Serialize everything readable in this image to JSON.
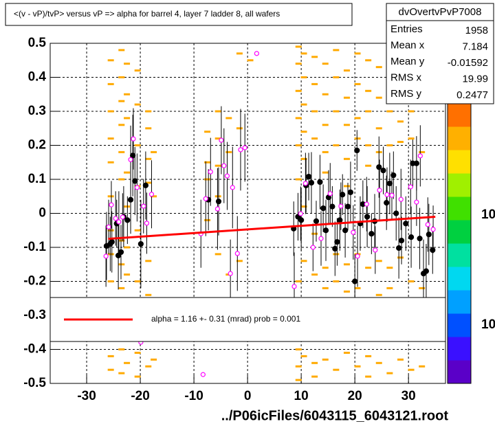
{
  "chart_data": {
    "type": "scatter",
    "title": "<(v - vP)/tvP> versus   vP => alpha for barrel 4, layer 7 ladder 8, all wafers",
    "x_label": "../P06icFiles/6043115_6043121.root",
    "xlim": [
      -36.8,
      36.9
    ],
    "ylim": [
      -0.5,
      0.5
    ],
    "xticks": [
      -30,
      -20,
      -10,
      0,
      10,
      20,
      30
    ],
    "yticks": [
      0.5,
      0.4,
      0.3,
      0.2,
      0.1,
      0,
      -0.1,
      -0.2,
      -0.3,
      -0.4,
      -0.5
    ],
    "grid": true,
    "cell_color": "#ffaa00",
    "cells": [
      {
        "x": -25.5,
        "y": [
          0.45,
          0.38,
          0.3,
          0.22,
          0.15,
          0.05,
          -0.05,
          -0.12,
          -0.2,
          -0.42,
          -0.46
        ]
      },
      {
        "x": -23.5,
        "y": [
          0.48,
          0.4,
          0.33,
          0.26,
          0.18,
          0.1,
          -0.08,
          -0.15,
          -0.22,
          -0.4,
          -0.47
        ]
      },
      {
        "x": -22.5,
        "y": [
          0.44,
          0.35,
          0.28,
          0.12,
          0.02,
          -0.1,
          -0.18,
          -0.44
        ]
      },
      {
        "x": -20.5,
        "y": [
          0.42,
          0.32,
          0.2,
          0.08,
          -0.05,
          -0.2,
          -0.41,
          -0.48
        ]
      },
      {
        "x": -18.5,
        "y": [
          0.3,
          0.25,
          0.16,
          0.09,
          -0.14,
          -0.24,
          -0.45
        ]
      },
      {
        "x": -17.5,
        "y": [
          0.18,
          0.05,
          -0.43
        ]
      },
      {
        "x": -7.5,
        "y": [
          0.24,
          0.15,
          0.1,
          -0.02
        ]
      },
      {
        "x": -5.5,
        "y": [
          0.3,
          0.22,
          0.14,
          0.05,
          -0.12
        ]
      },
      {
        "x": -3.5,
        "y": [
          0.28,
          0.18,
          -0.18
        ]
      },
      {
        "x": -1.5,
        "y": [
          0.47,
          0.25,
          -0.14
        ]
      },
      {
        "x": 0.5,
        "y": [
          0.45
        ]
      },
      {
        "x": 9.5,
        "y": [
          0.49,
          0.44,
          0.36,
          0.28,
          0.2,
          0.1,
          -0.2,
          -0.4,
          -0.45,
          -0.49
        ]
      },
      {
        "x": 10.5,
        "y": [
          0.47,
          0.4,
          0.32,
          0.24,
          0.16,
          0.02,
          -0.14,
          -0.42
        ]
      },
      {
        "x": 12.5,
        "y": [
          0.46,
          0.38,
          0.3,
          0.22,
          -0.06,
          -0.18,
          -0.44,
          -0.48
        ]
      },
      {
        "x": 14.5,
        "y": [
          0.44,
          0.35,
          0.26,
          0.18,
          0.12,
          -0.16,
          -0.22,
          -0.43
        ]
      },
      {
        "x": 16.5,
        "y": [
          0.48,
          0.4,
          0.3,
          0.2,
          -0.12,
          -0.2,
          -0.46
        ]
      },
      {
        "x": 18.5,
        "y": [
          0.42,
          0.34,
          0.26,
          0.16,
          0.08,
          -0.15,
          -0.23,
          -0.41
        ]
      },
      {
        "x": 20.5,
        "y": [
          0.47,
          0.38,
          0.28,
          0.22,
          -0.12,
          -0.22,
          -0.45
        ]
      },
      {
        "x": 22.5,
        "y": [
          0.45,
          0.36,
          0.3,
          0.2,
          0.14,
          -0.16,
          -0.42,
          -0.48
        ]
      },
      {
        "x": 24.5,
        "y": [
          0.43,
          0.34,
          0.25,
          0.18,
          -0.14,
          -0.24,
          -0.44
        ]
      },
      {
        "x": 26.5,
        "y": [
          0.48,
          0.38,
          0.3,
          0.2,
          -0.16,
          -0.22,
          -0.47
        ]
      },
      {
        "x": 28.5,
        "y": [
          0.44,
          0.36,
          0.27,
          0.21,
          -0.13,
          -0.43
        ]
      },
      {
        "x": 30.5,
        "y": [
          0.47,
          0.4,
          0.3,
          0.22,
          -0.2,
          -0.46
        ]
      },
      {
        "x": 32.5,
        "y": [
          0.42,
          0.34,
          0.18,
          -0.22,
          -0.45
        ]
      }
    ],
    "series": [
      {
        "marker": "filled",
        "color": "#000000",
        "x": [
          -26.3,
          -25.6,
          -25.3,
          -24.4,
          -24.1,
          -23.6,
          -23.1,
          -22.4,
          -21.8,
          -21.4,
          -21.0,
          -19.9,
          -19.0,
          -7.3,
          -5.4,
          8.6,
          9.4,
          10,
          10.9,
          11.4,
          11.9,
          12.8,
          13.5,
          14.1,
          14.6,
          15.1,
          15.8,
          16.3,
          16.7,
          17.2,
          17.7,
          18.2,
          18.7,
          19.2,
          20,
          20.4,
          21,
          21.5,
          22.3,
          23.1,
          23.7,
          24.5,
          25.3,
          25.9,
          26.5,
          27.2,
          27.7,
          28.2,
          28.7,
          29.5,
          30.5,
          30.8,
          31.5,
          32.1,
          32.8,
          33.3,
          33.8,
          34.5
        ],
        "values": [
          -0.096,
          -0.09,
          -0.084,
          -0.03,
          -0.124,
          -0.114,
          -0.01,
          -0.02,
          0.04,
          0.17,
          0.095,
          -0.09,
          0.082,
          0.04,
          0.035,
          -0.045,
          -0.01,
          -0.02,
          0.082,
          0.108,
          0.09,
          -0.023,
          0.092,
          0.015,
          -0.05,
          0.047,
          0.02,
          -0.104,
          -0.084,
          -0.02,
          0.055,
          -0.05,
          0.02,
          0.062,
          -0.2,
          0.185,
          -0.03,
          0.027,
          -0.01,
          -0.06,
          -0.023,
          0.136,
          0.126,
          0.031,
          0.088,
          0.112,
          0,
          -0.102,
          -0.08,
          -0.03,
          -0.07,
          0.147,
          0.147,
          -0.074,
          -0.177,
          -0.17,
          -0.062,
          -0.108
        ],
        "errors": [
          0.1,
          0.08,
          0.09,
          0.07,
          0.1,
          0.08,
          0.09,
          0.07,
          0.1,
          0.12,
          0.1,
          0.13,
          0.1,
          0.09,
          0.1,
          0.08,
          0.07,
          0.09,
          0.08,
          0.07,
          0.09,
          0.06,
          0.08,
          0.07,
          0.09,
          0.08,
          0.06,
          0.08,
          0.07,
          0.09,
          0.06,
          0.08,
          0.07,
          0.09,
          0.08,
          0.06,
          0.08,
          0.07,
          0.09,
          0.06,
          0.08,
          0.09,
          0.07,
          0.08,
          0.09,
          0.07,
          0.08,
          0.09,
          0.07,
          0.08,
          0.09,
          0.07,
          0.08,
          0.09,
          0.1,
          0.08,
          0.09,
          0.07
        ]
      },
      {
        "marker": "open",
        "color": "#ff00ff",
        "x": [
          -26.4,
          -25.9,
          -25.4,
          -24.6,
          -24,
          -23.3,
          -21.8,
          -21.3,
          -20.6,
          -19.4,
          -18.8,
          -17.9,
          -19.9,
          -8.7,
          -7.8,
          -6.9,
          -5.6,
          -4.9,
          -4.4,
          -3.8,
          -2.8,
          -3.2,
          -1.9,
          -1.3,
          -0.5,
          1.7,
          -8.3,
          8.7,
          9.9,
          10.8,
          12.2,
          13.7,
          15.4,
          17.4,
          19.7,
          20.5,
          22.2,
          23.8,
          24.6,
          26,
          26.9,
          28.6,
          30.4,
          31.5,
          32.2,
          33.6,
          34.6
        ],
        "values": [
          -0.126,
          -0.04,
          0.025,
          -0.015,
          -0.025,
          -0.011,
          0.158,
          0.219,
          0.076,
          0.021,
          -0.029,
          0.056,
          -0.379,
          -0.06,
          0.043,
          0.122,
          0.013,
          0.215,
          0.14,
          0.11,
          0.076,
          -0.177,
          -0.118,
          0.187,
          0.193,
          0.47,
          -0.474,
          -0.215,
          -0.001,
          0.088,
          -0.1,
          -0.074,
          0.058,
          0.021,
          -0.056,
          -0.126,
          0.027,
          -0.108,
          0.068,
          0.055,
          0.053,
          0.041,
          0.078,
          0.033,
          0.169,
          -0.033,
          -0.047
        ],
        "errors": [
          0.09,
          0.08,
          0.07,
          0.08,
          0.09,
          0.07,
          0.1,
          0.09,
          0.1,
          0.08,
          0.09,
          0.1,
          0,
          0.1,
          0.11,
          0.1,
          0.12,
          0.1,
          0.11,
          0.1,
          0.12,
          0.1,
          0.11,
          0.12,
          0.1,
          0,
          0,
          0.1,
          0.08,
          0.09,
          0.07,
          0.08,
          0.09,
          0.07,
          0.08,
          0.09,
          0.08,
          0.07,
          0.09,
          0.08,
          0.07,
          0.09,
          0.08,
          0.07,
          0.09,
          0.08,
          0.07
        ]
      }
    ],
    "fit": {
      "color": "#ff0000",
      "x": [
        -26,
        35
      ],
      "y": [
        -0.075,
        -0.01
      ]
    },
    "legend": {
      "text": "alpha =    1.16 +-  0.31 (mrad) prob = 0.001",
      "color": "#ff0000"
    },
    "stats": {
      "name": "dvOvertvPvP7008",
      "rows": [
        {
          "label": "Entries",
          "value": 1958
        },
        {
          "label": "Mean x",
          "value": 7.184
        },
        {
          "label": "Mean y",
          "value": -0.01592
        },
        {
          "label": "RMS x",
          "value": 19.99
        },
        {
          "label": "RMS y",
          "value": 0.2477
        }
      ]
    },
    "palette": [
      "#5a00c8",
      "#3a10ff",
      "#0050ff",
      "#00a0ff",
      "#00d8f0",
      "#00e0a0",
      "#00d040",
      "#40e000",
      "#a0f000",
      "#ffe000",
      "#ffb000",
      "#ff7000"
    ],
    "zticks": [
      "10",
      "10"
    ]
  }
}
